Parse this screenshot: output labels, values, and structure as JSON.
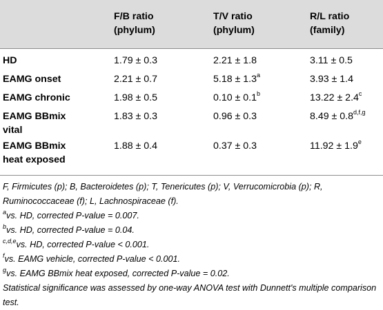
{
  "table": {
    "headers": [
      {
        "line1": "F/B ratio",
        "line2": "(phylum)"
      },
      {
        "line1": "T/V ratio",
        "line2": "(phylum)"
      },
      {
        "line1": "R/L ratio",
        "line2": "(family)"
      }
    ],
    "rows": [
      {
        "label1": "HD",
        "label2": "",
        "fb": "1.79 ± 0.3",
        "fb_sup": "",
        "tv": "2.21 ± 1.8",
        "tv_sup": "",
        "rl": "3.11 ± 0.5",
        "rl_sup": ""
      },
      {
        "label1": "EAMG onset",
        "label2": "",
        "fb": "2.21 ± 0.7",
        "fb_sup": "",
        "tv": "5.18 ± 1.3",
        "tv_sup": "a",
        "rl": "3.93 ± 1.4",
        "rl_sup": ""
      },
      {
        "label1": "EAMG chronic",
        "label2": "",
        "fb": "1.98 ± 0.5",
        "fb_sup": "",
        "tv": "0.10 ± 0.1",
        "tv_sup": "b",
        "rl": "13.22 ± 2.4",
        "rl_sup": "c"
      },
      {
        "label1": "EAMG BBmix",
        "label2": "vital",
        "fb": "1.83 ± 0.3",
        "fb_sup": "",
        "tv": "0.96 ± 0.3",
        "tv_sup": "",
        "rl": "8.49 ± 0.8",
        "rl_sup": "d,f,g"
      },
      {
        "label1": "EAMG BBmix",
        "label2": "heat exposed",
        "fb": "1.88 ± 0.4",
        "fb_sup": "",
        "tv": "0.37 ± 0.3",
        "tv_sup": "",
        "rl": "11.92 ± 1.9",
        "rl_sup": "e"
      }
    ]
  },
  "footnotes": {
    "abbreviations": "F, Firmicutes (p); B, Bacteroidetes (p); T, Tenericutes (p); V, Verrucomicrobia (p); R, Ruminococcaceae (f); L, Lachnospiraceae (f).",
    "notes": [
      {
        "sup": "a",
        "text": "vs. HD, corrected P-value = 0.007."
      },
      {
        "sup": "b",
        "text": "vs. HD, corrected P-value = 0.04."
      },
      {
        "sup": "c,d,e",
        "text": "vs. HD, corrected P-value < 0.001."
      },
      {
        "sup": "f",
        "text": "vs. EAMG vehicle, corrected P-value < 0.001."
      },
      {
        "sup": "g",
        "text": "vs. EAMG BBmix heat exposed, corrected P-value = 0.02."
      }
    ],
    "statistics": "Statistical significance was assessed by one-way ANOVA test with Dunnett's multiple comparison test."
  }
}
